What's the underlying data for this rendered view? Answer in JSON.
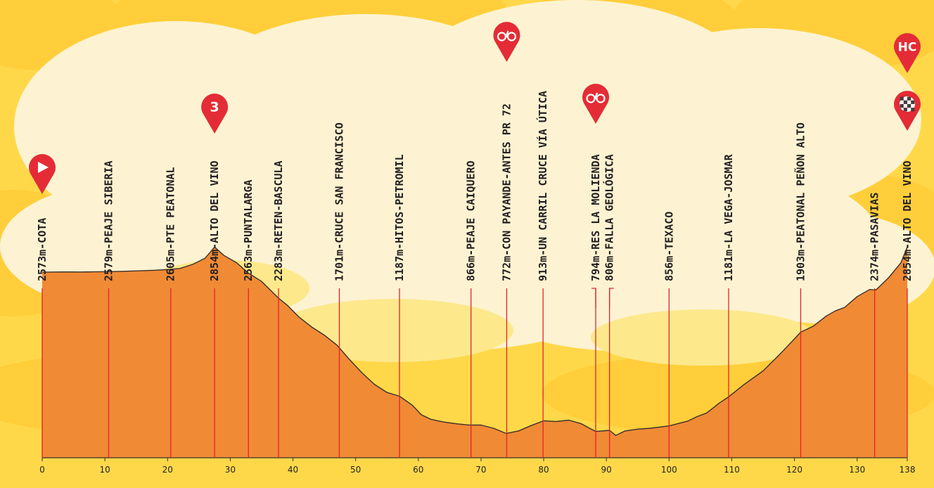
{
  "chart_data": {
    "type": "area",
    "x_unit": "km",
    "y_unit": "m",
    "x_ticks": [
      0,
      10,
      20,
      30,
      40,
      50,
      60,
      70,
      80,
      90,
      100,
      110,
      120,
      130,
      138
    ],
    "xlim": [
      0,
      138
    ],
    "profile": {
      "x": [
        0,
        2,
        4,
        6,
        8,
        10.6,
        13,
        16,
        18,
        20.5,
        22,
        24,
        26,
        27.5,
        29,
        31,
        32.9,
        35,
        37.7,
        39,
        41,
        43,
        45,
        47,
        49,
        51,
        53,
        55,
        57,
        59,
        60.5,
        62,
        64,
        66,
        68,
        70,
        72,
        74,
        76,
        78,
        80,
        82,
        84,
        86,
        88.3,
        90.5,
        91.5,
        93,
        95,
        97,
        100,
        103,
        104.5,
        106,
        108,
        109.5,
        112,
        115,
        118,
        121,
        123,
        125,
        126.5,
        128,
        130,
        132,
        133,
        135,
        137,
        138
      ],
      "elevation": [
        2573,
        2575,
        2576,
        2575,
        2577,
        2579,
        2583,
        2590,
        2595,
        2605,
        2615,
        2660,
        2730,
        2854,
        2760,
        2680,
        2563,
        2470,
        2283,
        2210,
        2070,
        1960,
        1870,
        1760,
        1600,
        1450,
        1320,
        1230,
        1187,
        1090,
        980,
        930,
        900,
        880,
        866,
        865,
        830,
        772,
        800,
        860,
        913,
        905,
        920,
        880,
        794,
        806,
        750,
        800,
        820,
        830,
        856,
        910,
        960,
        1000,
        1110,
        1181,
        1320,
        1470,
        1680,
        1903,
        1970,
        2080,
        2140,
        2180,
        2300,
        2380,
        2374,
        2510,
        2680,
        2854
      ]
    },
    "ylim": [
      500,
      3100
    ],
    "waypoints": [
      {
        "km": 0,
        "label": "2573m-COTA"
      },
      {
        "km": 10.6,
        "label": "2579m-PEAJE SIBERIA"
      },
      {
        "km": 20.5,
        "label": "2605m-PTE PEATONAL"
      },
      {
        "km": 27.5,
        "label": "2854m-ALTO DEL VINO"
      },
      {
        "km": 32.9,
        "label": "2563m-PUNTALARGA"
      },
      {
        "km": 37.7,
        "label": "2283m-RETEN-BASCULA"
      },
      {
        "km": 47.4,
        "label": "1701m-CRUCE SAN FRANCISCO"
      },
      {
        "km": 57,
        "label": "1187m-HITOS-PETROMIL"
      },
      {
        "km": 68.4,
        "label": "866m-PEAJE CAIQUERO"
      },
      {
        "km": 74.1,
        "label": "772m-CON PAYANDE-ANTES PR 72"
      },
      {
        "km": 79.9,
        "label": "913m-UN CARRIL CRUCE VÍA ÚTICA"
      },
      {
        "km": 88.3,
        "label": "794m-RES LA MOLIENDA"
      },
      {
        "km": 90.5,
        "label": "806m-FALLA GEOLÓGICA"
      },
      {
        "km": 100,
        "label": "856m-TEXACO"
      },
      {
        "km": 109.5,
        "label": "1181m-LA VEGA-JOSMAR"
      },
      {
        "km": 121,
        "label": "1903m-PEATONAL PEÑON ALTO"
      },
      {
        "km": 132.8,
        "label": "2374m-PASAVIAS"
      },
      {
        "km": 138,
        "label": "2854m-ALTO DEL VINO"
      }
    ],
    "markers": [
      {
        "km": 0,
        "icon": "start-flag-icon",
        "text": ""
      },
      {
        "km": 27.5,
        "icon": "climb-category-icon",
        "text": "3"
      },
      {
        "km": 74.1,
        "icon": "sprint-bike-icon",
        "text": ""
      },
      {
        "km": 88.3,
        "icon": "sprint-bike-icon",
        "text": ""
      },
      {
        "km": 138,
        "icon": "climb-category-icon",
        "text": "HC"
      },
      {
        "km": 138,
        "icon": "finish-checkered-icon",
        "text": ""
      }
    ],
    "colors": {
      "fill": "#f08a35",
      "line": "#e8202d",
      "pin": "#e42c36",
      "outline": "#3b302a",
      "bg": "#ffd84a",
      "bg_light": "#fdf3d2"
    }
  }
}
